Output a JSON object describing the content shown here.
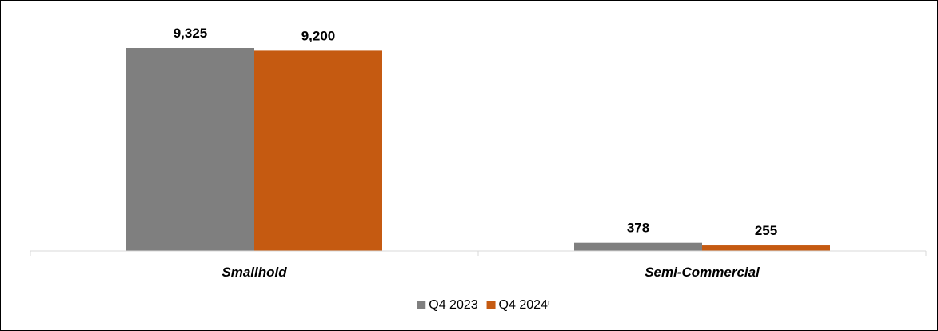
{
  "chart_data": {
    "type": "bar",
    "categories": [
      "Smallhold",
      "Semi-Commercial"
    ],
    "series": [
      {
        "name": "Q4 2023",
        "values": [
          9325,
          378
        ],
        "labels": [
          "9,325",
          "378"
        ],
        "color": "#7f7f7f"
      },
      {
        "name": "Q4 2024ʳ",
        "values": [
          9200,
          255
        ],
        "labels": [
          "9,200",
          "255"
        ],
        "color": "#c55a11"
      }
    ],
    "title": "",
    "xlabel": "",
    "ylabel": "",
    "ylim": [
      0,
      9325
    ],
    "grid": false,
    "legend_position": "bottom",
    "axis_color": "#d9d9d9"
  }
}
